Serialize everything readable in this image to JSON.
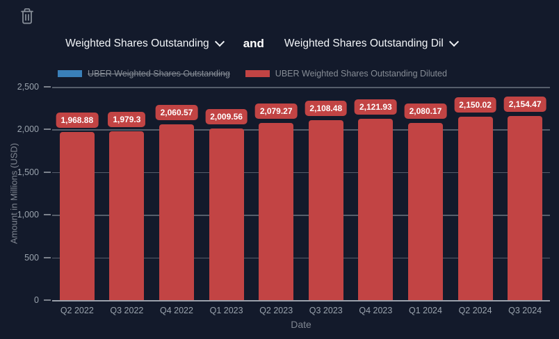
{
  "toolbar": {
    "trash_icon": "trash"
  },
  "selectors": {
    "metric_one": "Weighted Shares Outstanding",
    "connector": "and",
    "metric_two": "Weighted Shares Outstanding Dil"
  },
  "legend": {
    "position": "top",
    "items": [
      {
        "label": "UBER Weighted Shares Outstanding",
        "color": "#3a80b9",
        "hidden": true
      },
      {
        "label": "UBER Weighted Shares Outstanding Diluted",
        "color": "#c24444",
        "hidden": false
      }
    ]
  },
  "chart_data": {
    "type": "bar",
    "title": "",
    "categories": [
      "Q2 2022",
      "Q3 2022",
      "Q4 2022",
      "Q1 2023",
      "Q2 2023",
      "Q3 2023",
      "Q4 2023",
      "Q1 2024",
      "Q2 2024",
      "Q3 2024"
    ],
    "series": [
      {
        "name": "UBER Weighted Shares Outstanding",
        "color": "#3a80b9",
        "hidden": true,
        "values": []
      },
      {
        "name": "UBER Weighted Shares Outstanding Diluted",
        "color": "#c24444",
        "hidden": false,
        "values": [
          1968.88,
          1979.3,
          2060.57,
          2009.56,
          2079.27,
          2108.48,
          2121.93,
          2080.17,
          2150.02,
          2154.47
        ],
        "data_labels": [
          "1,968.88",
          "1,979.3",
          "2,060.57",
          "2,009.56",
          "2,079.27",
          "2,108.48",
          "2,121.93",
          "2,080.17",
          "2,150.02",
          "2,154.47"
        ]
      }
    ],
    "xlabel": "Date",
    "ylabel": "Amount in Millions (USD)",
    "yticks": [
      "2,500",
      "2,000",
      "1,500",
      "1,000",
      "500",
      "0"
    ],
    "ylim": [
      0,
      2500
    ],
    "grid": true,
    "legend_position": "top"
  },
  "colors": {
    "background": "#131a2b",
    "bar": "#c24444",
    "hidden_series": "#3a80b9",
    "grid_line": "#6e7582",
    "axis_line": "#9aa0aa",
    "tick_text": "#9aa3ad",
    "axis_title_text": "#7f8590",
    "legend_text": "#878d96",
    "icon": "#8b929c"
  }
}
